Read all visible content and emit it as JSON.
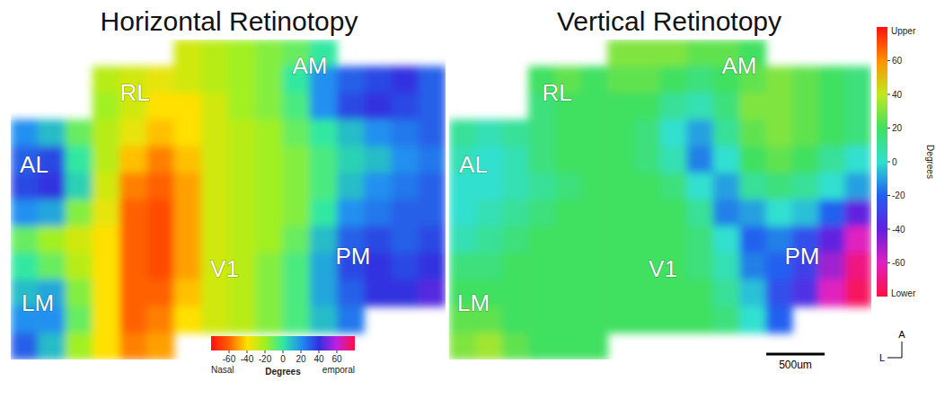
{
  "chart_data": [
    {
      "type": "heatmap",
      "title": "Horizontal Retinotopy",
      "areas": [
        "RL",
        "AM",
        "AL",
        "PM",
        "V1",
        "LM"
      ],
      "cells": [
        [
          null,
          null,
          null,
          null,
          null,
          null,
          -30,
          -25,
          -20,
          -15,
          -10,
          0,
          null,
          null,
          null,
          null
        ],
        [
          null,
          null,
          null,
          -25,
          -30,
          -35,
          -30,
          -25,
          -20,
          -15,
          0,
          20,
          30,
          35,
          40,
          30
        ],
        [
          null,
          null,
          null,
          -20,
          -30,
          -40,
          -40,
          -30,
          -20,
          -15,
          -5,
          20,
          35,
          40,
          35,
          30
        ],
        [
          20,
          10,
          -10,
          -25,
          -35,
          -45,
          -40,
          -30,
          -25,
          -20,
          -10,
          0,
          10,
          20,
          25,
          30
        ],
        [
          30,
          35,
          0,
          -25,
          -45,
          -55,
          -45,
          -30,
          -25,
          -20,
          -15,
          -5,
          5,
          10,
          20,
          25
        ],
        [
          35,
          40,
          5,
          -30,
          -55,
          -60,
          -50,
          -30,
          -25,
          -20,
          -15,
          -5,
          10,
          20,
          25,
          30
        ],
        [
          20,
          15,
          -15,
          -35,
          -60,
          -65,
          -50,
          -30,
          -25,
          -20,
          -15,
          0,
          20,
          25,
          30,
          30
        ],
        [
          -10,
          -20,
          -30,
          -40,
          -60,
          -65,
          -50,
          -30,
          -25,
          -20,
          -10,
          10,
          30,
          35,
          30,
          35
        ],
        [
          0,
          -10,
          -25,
          -40,
          -60,
          -65,
          -50,
          -30,
          -25,
          -15,
          -5,
          15,
          35,
          40,
          35,
          40
        ],
        [
          10,
          15,
          -15,
          -40,
          -60,
          -60,
          -45,
          -30,
          -25,
          -15,
          -5,
          15,
          30,
          40,
          40,
          45
        ],
        [
          20,
          20,
          -10,
          -40,
          -60,
          -55,
          -40,
          -30,
          -25,
          -15,
          -5,
          10,
          25,
          null,
          null,
          null
        ],
        [
          30,
          10,
          -20,
          -40,
          -55,
          -50,
          null,
          null,
          null,
          null,
          null,
          null,
          null,
          null,
          null,
          null
        ]
      ],
      "colorbar": {
        "orientation": "horizontal",
        "range": [
          -80,
          80
        ],
        "ticks": [
          -60,
          -40,
          -20,
          0,
          20,
          40,
          60
        ],
        "title": "Degrees",
        "low_label": "Nasal",
        "high_label": "emporal",
        "colors": [
          "#ff1010",
          "#ff6000",
          "#ffe000",
          "#a0f020",
          "#30e8a0",
          "#2090f0",
          "#3030e0",
          "#c020e0",
          "#ff1040"
        ]
      }
    },
    {
      "type": "heatmap",
      "title": "Vertical Retinotopy",
      "areas": [
        "RL",
        "AM",
        "AL",
        "PM",
        "V1",
        "LM"
      ],
      "cells": [
        [
          null,
          null,
          null,
          null,
          null,
          null,
          30,
          30,
          30,
          25,
          25,
          20,
          null,
          null,
          null,
          null
        ],
        [
          null,
          null,
          null,
          20,
          25,
          20,
          25,
          25,
          20,
          15,
          20,
          25,
          30,
          25,
          20,
          15
        ],
        [
          null,
          null,
          null,
          15,
          20,
          20,
          20,
          20,
          10,
          5,
          15,
          30,
          30,
          25,
          20,
          15
        ],
        [
          10,
          5,
          10,
          15,
          20,
          20,
          20,
          15,
          0,
          -10,
          10,
          25,
          30,
          25,
          20,
          15
        ],
        [
          5,
          0,
          5,
          15,
          20,
          20,
          20,
          15,
          5,
          -15,
          0,
          20,
          25,
          20,
          10,
          0
        ],
        [
          0,
          0,
          5,
          10,
          15,
          20,
          20,
          20,
          15,
          0,
          -10,
          10,
          15,
          10,
          0,
          -10
        ],
        [
          0,
          5,
          10,
          15,
          20,
          20,
          20,
          20,
          20,
          10,
          -15,
          -10,
          0,
          -5,
          -20,
          -40
        ],
        [
          5,
          10,
          15,
          20,
          20,
          20,
          20,
          20,
          20,
          15,
          0,
          -20,
          -15,
          -25,
          -40,
          -60
        ],
        [
          15,
          15,
          20,
          20,
          20,
          20,
          20,
          20,
          20,
          15,
          5,
          -15,
          -20,
          -30,
          -50,
          -70
        ],
        [
          20,
          20,
          20,
          20,
          20,
          20,
          20,
          20,
          20,
          20,
          10,
          -5,
          -25,
          -35,
          -60,
          -75
        ],
        [
          25,
          25,
          20,
          20,
          20,
          20,
          20,
          20,
          20,
          20,
          15,
          0,
          -20,
          null,
          null,
          null
        ],
        [
          30,
          35,
          25,
          20,
          20,
          20,
          null,
          null,
          null,
          null,
          null,
          null,
          null,
          null,
          null,
          null
        ]
      ],
      "colorbar": {
        "orientation": "vertical",
        "range": [
          -80,
          80
        ],
        "ticks": [
          -60,
          -40,
          -20,
          0,
          20,
          40,
          60
        ],
        "title": "Degrees",
        "low_label": "Lower",
        "high_label": "Upper",
        "colors": [
          "#ff1040",
          "#e020c0",
          "#6020e0",
          "#2060f0",
          "#30e0d0",
          "#40e060",
          "#c0e820",
          "#ff9000",
          "#ff1010"
        ]
      },
      "scale_bar": {
        "label": "500um"
      },
      "compass": {
        "up": "A",
        "left": "L"
      }
    }
  ]
}
